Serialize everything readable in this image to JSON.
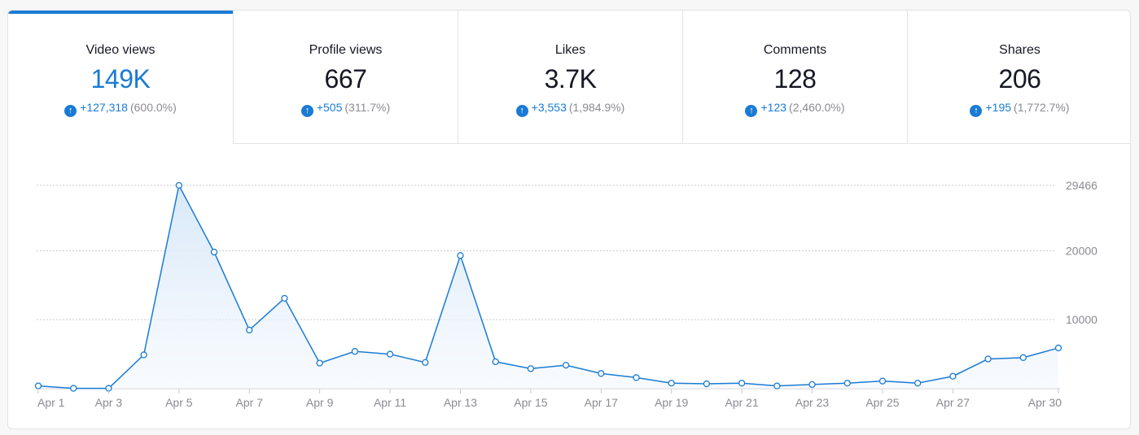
{
  "colors": {
    "accent": "#1a7bd4",
    "text_primary": "#161823",
    "text_secondary": "#8a8b91",
    "area_fill": "#e3effa"
  },
  "tabs": [
    {
      "label": "Video views",
      "value": "149K",
      "delta": "+127,318",
      "pct": "(600.0%)",
      "active": true,
      "icon": "arrow-up-circle-icon"
    },
    {
      "label": "Profile views",
      "value": "667",
      "delta": "+505",
      "pct": "(311.7%)",
      "active": false,
      "icon": "arrow-up-circle-icon"
    },
    {
      "label": "Likes",
      "value": "3.7K",
      "delta": "+3,553",
      "pct": "(1,984.9%)",
      "active": false,
      "icon": "arrow-up-circle-icon"
    },
    {
      "label": "Comments",
      "value": "128",
      "delta": "+123",
      "pct": "(2,460.0%)",
      "active": false,
      "icon": "arrow-up-circle-icon"
    },
    {
      "label": "Shares",
      "value": "206",
      "delta": "+195",
      "pct": "(1,772.7%)",
      "active": false,
      "icon": "arrow-up-circle-icon"
    }
  ],
  "chart_data": {
    "type": "area",
    "x": [
      "Apr 1",
      "Apr 2",
      "Apr 3",
      "Apr 4",
      "Apr 5",
      "Apr 6",
      "Apr 7",
      "Apr 8",
      "Apr 9",
      "Apr 10",
      "Apr 11",
      "Apr 12",
      "Apr 13",
      "Apr 14",
      "Apr 15",
      "Apr 16",
      "Apr 17",
      "Apr 18",
      "Apr 19",
      "Apr 20",
      "Apr 21",
      "Apr 22",
      "Apr 23",
      "Apr 24",
      "Apr 25",
      "Apr 26",
      "Apr 27",
      "Apr 28",
      "Apr 29",
      "Apr 30"
    ],
    "x_tick_labels": [
      "Apr 1",
      "Apr 3",
      "Apr 5",
      "Apr 7",
      "Apr 9",
      "Apr 11",
      "Apr 13",
      "Apr 15",
      "Apr 17",
      "Apr 19",
      "Apr 21",
      "Apr 23",
      "Apr 25",
      "Apr 27",
      "Apr 30"
    ],
    "series": [
      {
        "values": [
          400,
          50,
          50,
          4900,
          29466,
          19800,
          8500,
          13100,
          3700,
          5400,
          5000,
          3800,
          19300,
          3900,
          2900,
          3400,
          2200,
          1600,
          800,
          700,
          800,
          400,
          600,
          800,
          1100,
          800,
          1800,
          4300,
          4500,
          5900
        ]
      }
    ],
    "y_ticks": [
      10000,
      20000,
      29466
    ],
    "ylim": [
      0,
      29466
    ],
    "grid": true,
    "title": "",
    "xlabel": "",
    "ylabel": ""
  }
}
